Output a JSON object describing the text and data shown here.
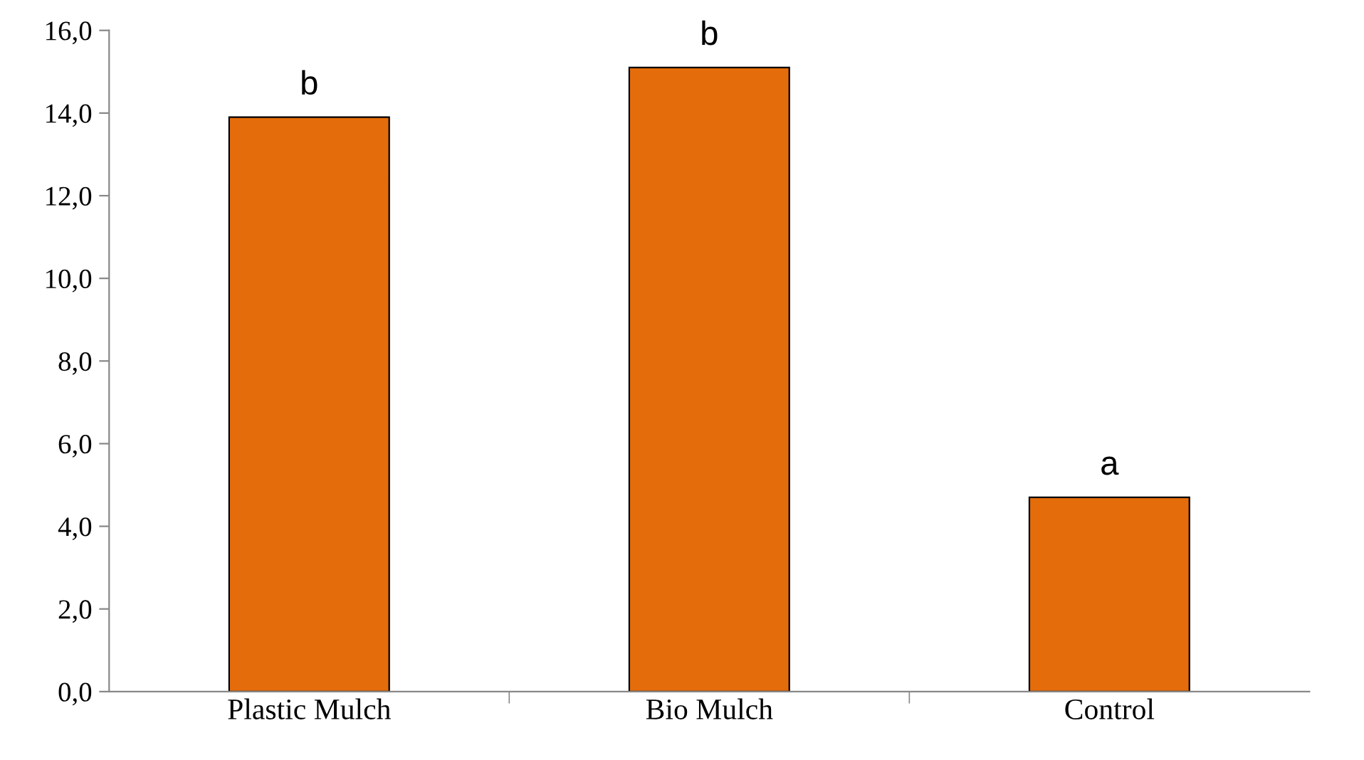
{
  "chart_data": {
    "type": "bar",
    "categories": [
      "Plastic Mulch",
      "Bio Mulch",
      "Control"
    ],
    "values": [
      13.9,
      15.1,
      4.7
    ],
    "color": "#e46c0a",
    "ylim": [
      0,
      16
    ],
    "yticks": [
      {
        "value": 0,
        "label": "0,0"
      },
      {
        "value": 2,
        "label": "2,0"
      },
      {
        "value": 4,
        "label": "4,0"
      },
      {
        "value": 6,
        "label": "6,0"
      },
      {
        "value": 8,
        "label": "8,0"
      },
      {
        "value": 10,
        "label": "10,0"
      },
      {
        "value": 12,
        "label": "12,0"
      },
      {
        "value": 14,
        "label": "14,0"
      },
      {
        "value": 16,
        "label": "16,0"
      }
    ],
    "annotations": [
      {
        "text": "b",
        "x": "Plastic Mulch",
        "y": 13.9
      },
      {
        "text": "b",
        "x": "Bio Mulch",
        "y": 15.1
      },
      {
        "text": "a",
        "x": "Control",
        "y": 4.7
      }
    ],
    "grid": false,
    "legend": false
  }
}
